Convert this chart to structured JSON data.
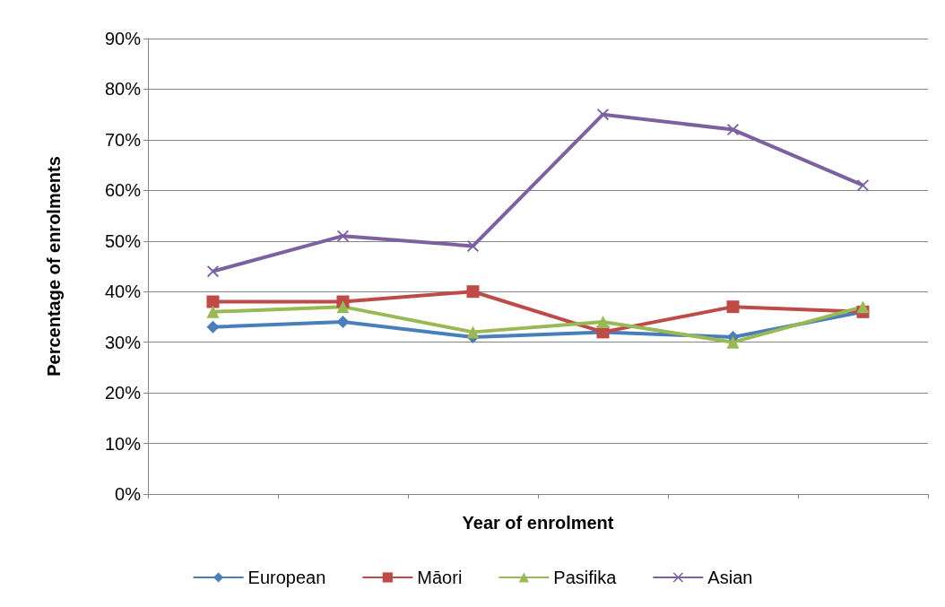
{
  "chart_data": {
    "type": "line",
    "xlabel": "Year of enrolment",
    "ylabel": "Percentage of enrolments",
    "categories": [
      null,
      null,
      null,
      null,
      null,
      null
    ],
    "series": [
      {
        "name": "European",
        "color": "#4a7ebb",
        "marker": "diamond",
        "values": [
          33,
          34,
          31,
          32,
          31,
          36
        ]
      },
      {
        "name": "Māori",
        "color": "#be4b48",
        "marker": "square",
        "values": [
          38,
          38,
          40,
          32,
          37,
          36
        ]
      },
      {
        "name": "Pasifika",
        "color": "#98b954",
        "marker": "triangle",
        "values": [
          36,
          37,
          32,
          34,
          30,
          37
        ]
      },
      {
        "name": "Asian",
        "color": "#7d60a0",
        "marker": "cross",
        "values": [
          44,
          51,
          49,
          75,
          72,
          61
        ]
      }
    ],
    "ylim": [
      0,
      90
    ],
    "yticks": [
      {
        "value": 0,
        "label": "0%"
      },
      {
        "value": 10,
        "label": "10%"
      },
      {
        "value": 20,
        "label": "20%"
      },
      {
        "value": 30,
        "label": "30%"
      },
      {
        "value": 40,
        "label": "40%"
      },
      {
        "value": 50,
        "label": "50%"
      },
      {
        "value": 60,
        "label": "60%"
      },
      {
        "value": 70,
        "label": "70%"
      },
      {
        "value": 80,
        "label": "80%"
      },
      {
        "value": 90,
        "label": "90%"
      }
    ],
    "grid": "y",
    "legend": "bottom",
    "line_style": "solid"
  }
}
